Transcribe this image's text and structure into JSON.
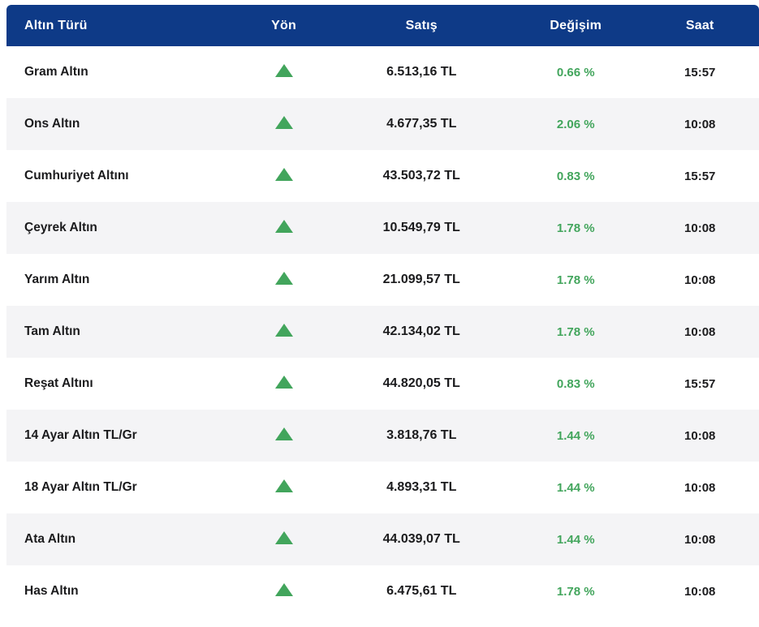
{
  "chart_data": {
    "type": "table",
    "columns": [
      "Altın Türü",
      "Yön",
      "Satış",
      "Değişim",
      "Saat"
    ],
    "rows": [
      {
        "name": "Gram Altın",
        "direction": "up",
        "price": "6.513,16 TL",
        "change": "0.66 %",
        "time": "15:57"
      },
      {
        "name": "Ons Altın",
        "direction": "up",
        "price": "4.677,35 TL",
        "change": "2.06 %",
        "time": "10:08"
      },
      {
        "name": "Cumhuriyet Altını",
        "direction": "up",
        "price": "43.503,72 TL",
        "change": "0.83 %",
        "time": "15:57"
      },
      {
        "name": "Çeyrek Altın",
        "direction": "up",
        "price": "10.549,79 TL",
        "change": "1.78 %",
        "time": "10:08"
      },
      {
        "name": "Yarım Altın",
        "direction": "up",
        "price": "21.099,57 TL",
        "change": "1.78 %",
        "time": "10:08"
      },
      {
        "name": "Tam Altın",
        "direction": "up",
        "price": "42.134,02 TL",
        "change": "1.78 %",
        "time": "10:08"
      },
      {
        "name": "Reşat Altını",
        "direction": "up",
        "price": "44.820,05 TL",
        "change": "0.83 %",
        "time": "15:57"
      },
      {
        "name": "14 Ayar Altın TL/Gr",
        "direction": "up",
        "price": "3.818,76 TL",
        "change": "1.44 %",
        "time": "10:08"
      },
      {
        "name": "18 Ayar Altın TL/Gr",
        "direction": "up",
        "price": "4.893,31 TL",
        "change": "1.44 %",
        "time": "10:08"
      },
      {
        "name": "Ata Altın",
        "direction": "up",
        "price": "44.039,07 TL",
        "change": "1.44 %",
        "time": "10:08"
      },
      {
        "name": "Has Altın",
        "direction": "up",
        "price": "6.475,61 TL",
        "change": "1.78 %",
        "time": "10:08"
      }
    ]
  },
  "theme": {
    "header_bg": "#0e3a87",
    "positive_green": "#42a55c",
    "stripe_bg": "#f4f4f6",
    "text": "#1b1b1d"
  }
}
